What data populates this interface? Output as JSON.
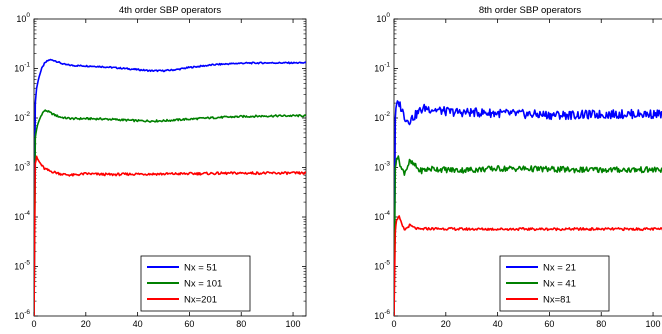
{
  "chart_data": [
    {
      "type": "line",
      "title": "4th order SBP operators",
      "xlabel": "",
      "ylabel": "",
      "xlim": [
        0,
        105
      ],
      "ylim_log10": [
        -6,
        0
      ],
      "yscale": "log",
      "x_ticks": [
        "0",
        "20",
        "40",
        "60",
        "80",
        "100"
      ],
      "x_tick_values": [
        0,
        20,
        40,
        60,
        80,
        100
      ],
      "y_tick_exponents": [
        "0",
        "-1",
        "-2",
        "-3",
        "-4",
        "-5",
        "-6"
      ],
      "y_tick_base": "10",
      "legend_position": "bottom-right",
      "grid": false,
      "series": [
        {
          "name": "Nx = 51",
          "color": "#0000ff",
          "x": [
            0,
            0.5,
            1,
            2,
            3,
            4,
            5,
            6,
            8,
            10,
            12,
            15,
            20,
            25,
            30,
            35,
            40,
            45,
            50,
            55,
            60,
            70,
            80,
            90,
            100,
            105
          ],
          "y": [
            1e-06,
            0.02,
            0.04,
            0.07,
            0.1,
            0.125,
            0.14,
            0.15,
            0.145,
            0.13,
            0.12,
            0.115,
            0.113,
            0.11,
            0.105,
            0.1,
            0.095,
            0.09,
            0.09,
            0.095,
            0.105,
            0.12,
            0.128,
            0.13,
            0.13,
            0.13
          ]
        },
        {
          "name": "Nx = 101",
          "color": "#008000",
          "x": [
            0,
            0.5,
            1,
            2,
            3,
            4,
            5,
            6,
            8,
            10,
            12,
            15,
            20,
            25,
            30,
            40,
            45,
            50,
            60,
            70,
            80,
            90,
            100,
            105
          ],
          "y": [
            1e-06,
            0.004,
            0.006,
            0.009,
            0.012,
            0.014,
            0.014,
            0.013,
            0.0115,
            0.0105,
            0.01,
            0.0097,
            0.0097,
            0.0096,
            0.0094,
            0.0088,
            0.0087,
            0.0088,
            0.0095,
            0.0102,
            0.0107,
            0.011,
            0.0111,
            0.0111
          ]
        },
        {
          "name": "Nx=201",
          "color": "#ff0000",
          "x": [
            0,
            0.5,
            1,
            2,
            3,
            4,
            5,
            6,
            8,
            10,
            12,
            15,
            20,
            25,
            30,
            40,
            50,
            60,
            70,
            80,
            90,
            100,
            105
          ],
          "y": [
            1e-06,
            0.0012,
            0.0016,
            0.0013,
            0.0011,
            0.00095,
            0.0009,
            0.00085,
            0.0008,
            0.00075,
            0.00072,
            0.0007,
            0.00075,
            0.00073,
            0.00072,
            0.00074,
            0.00074,
            0.00075,
            0.00076,
            0.00077,
            0.00077,
            0.00077,
            0.00077
          ]
        }
      ]
    },
    {
      "type": "line",
      "title": "8th order SBP operators",
      "xlabel": "",
      "ylabel": "",
      "xlim": [
        0,
        105
      ],
      "ylim_log10": [
        -6,
        0
      ],
      "yscale": "log",
      "x_ticks": [
        "0",
        "20",
        "40",
        "60",
        "80",
        "100"
      ],
      "x_tick_values": [
        0,
        20,
        40,
        60,
        80,
        100
      ],
      "y_tick_exponents": [
        "0",
        "-1",
        "-2",
        "-3",
        "-4",
        "-5",
        "-6"
      ],
      "y_tick_base": "10",
      "legend_position": "bottom-right",
      "grid": false,
      "series": [
        {
          "name": "Nx = 21",
          "color": "#0000ff",
          "x": [
            0,
            0.5,
            1,
            2,
            3,
            4,
            5,
            6,
            8,
            10,
            12,
            15,
            20,
            25,
            30,
            40,
            50,
            60,
            70,
            80,
            90,
            100,
            105
          ],
          "y": [
            1e-06,
            0.01,
            0.018,
            0.02,
            0.015,
            0.011,
            0.009,
            0.009,
            0.011,
            0.014,
            0.016,
            0.015,
            0.0135,
            0.013,
            0.013,
            0.0125,
            0.012,
            0.0115,
            0.0115,
            0.0118,
            0.012,
            0.012,
            0.012
          ]
        },
        {
          "name": "Nx = 41",
          "color": "#008000",
          "x": [
            0,
            0.5,
            1,
            2,
            3,
            4,
            5,
            6,
            8,
            10,
            12,
            15,
            20,
            25,
            30,
            40,
            50,
            60,
            70,
            80,
            90,
            100,
            105
          ],
          "y": [
            1e-06,
            0.001,
            0.0017,
            0.0014,
            0.0009,
            0.0008,
            0.001,
            0.0013,
            0.0011,
            0.00085,
            0.0009,
            0.00095,
            0.0009,
            0.00088,
            0.0009,
            0.00095,
            0.00095,
            0.00092,
            0.0009,
            0.0009,
            0.0009,
            0.0009,
            0.0009
          ]
        },
        {
          "name": "Nx=81",
          "color": "#ff0000",
          "x": [
            0,
            0.5,
            1,
            2,
            3,
            4,
            5,
            6,
            8,
            10,
            12,
            15,
            20,
            25,
            30,
            40,
            50,
            60,
            70,
            80,
            90,
            100,
            105
          ],
          "y": [
            1e-06,
            5e-05,
            9e-05,
            0.0001,
            7e-05,
            5.5e-05,
            6e-05,
            6.8e-05,
            6e-05,
            5.6e-05,
            5.8e-05,
            5.8e-05,
            5.8e-05,
            5.7e-05,
            5.7e-05,
            5.7e-05,
            5.7e-05,
            5.7e-05,
            5.7e-05,
            5.7e-05,
            5.7e-05,
            5.7e-05,
            5.7e-05
          ]
        }
      ]
    }
  ]
}
